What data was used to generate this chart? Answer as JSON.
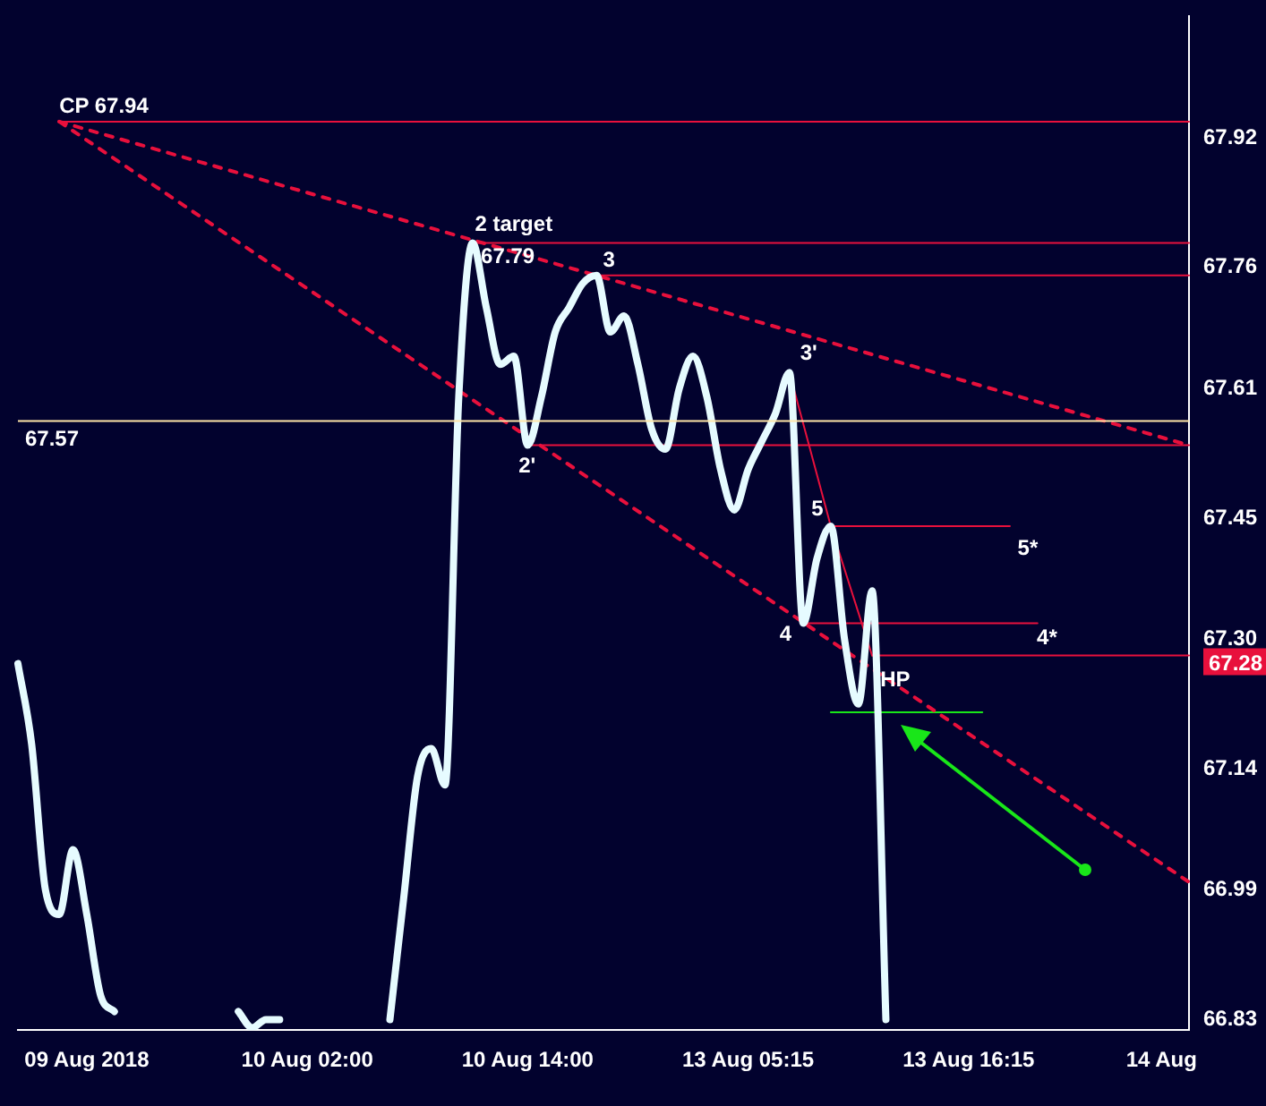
{
  "chart_data": {
    "type": "line",
    "categories": [
      null,
      null,
      null,
      null,
      null,
      "09 Aug 2018",
      null,
      null,
      null,
      null,
      null,
      null,
      null,
      null,
      null,
      null,
      null,
      null,
      null,
      null,
      null,
      "10 Aug 02:00",
      null,
      null,
      null,
      null,
      null,
      null,
      null,
      null,
      null,
      null,
      null,
      null,
      null,
      null,
      null,
      "10 Aug 14:00",
      null,
      null,
      null,
      null,
      null,
      null,
      null,
      null,
      null,
      null,
      null,
      null,
      null,
      null,
      null,
      "13 Aug 05:15",
      null,
      null,
      null,
      null,
      null,
      null,
      null,
      null,
      null,
      null,
      null,
      null,
      null,
      null,
      null,
      "13 Aug 16:15",
      null,
      null,
      null,
      null,
      null,
      null,
      null,
      null,
      null,
      null,
      null,
      null,
      null,
      "14 Aug",
      null,
      null
    ],
    "series": [
      {
        "color": "#e6fbff",
        "values": [
          67.27,
          67.17,
          66.99,
          66.96,
          67.04,
          66.96,
          66.86,
          66.84,
          null,
          null,
          null,
          null,
          null,
          null,
          null,
          null,
          66.84,
          66.82,
          66.83,
          66.83,
          null,
          null,
          null,
          null,
          null,
          null,
          null,
          66.83,
          66.98,
          67.13,
          67.165,
          67.12,
          67.6,
          67.79,
          67.71,
          67.64,
          67.65,
          67.54,
          67.6,
          67.68,
          67.71,
          67.74,
          67.75,
          67.68,
          67.7,
          67.64,
          67.56,
          67.535,
          67.61,
          67.65,
          67.6,
          67.51,
          67.46,
          67.51,
          67.545,
          67.58,
          67.63,
          67.32,
          67.4,
          67.44,
          67.3,
          67.22,
          67.36,
          66.83,
          null,
          null,
          null,
          null,
          null,
          null,
          null,
          null,
          null,
          null,
          null,
          null,
          null,
          null,
          null,
          null,
          null,
          null,
          null,
          null,
          null,
          null
        ]
      },
      {
        "color": "#e8103c",
        "line_style": "dashed",
        "values": [
          null,
          null,
          null,
          67.94,
          null,
          null,
          null,
          null,
          null,
          null,
          null,
          null,
          null,
          null,
          null,
          null,
          null,
          null,
          null,
          null,
          null,
          null,
          null,
          null,
          null,
          null,
          null,
          null,
          null,
          null,
          null,
          null,
          null,
          null,
          null,
          null,
          null,
          null,
          null,
          null,
          null,
          null,
          null,
          null,
          null,
          null,
          null,
          null,
          null,
          null,
          null,
          null,
          null,
          null,
          null,
          null,
          null,
          null,
          null,
          null,
          null,
          null,
          null,
          null,
          null,
          null,
          null,
          null,
          null,
          null,
          null,
          null,
          null,
          null,
          null,
          null,
          null,
          null,
          null,
          null,
          null,
          null,
          null,
          null,
          null,
          67.54
        ]
      },
      {
        "color": "#e8103c",
        "line_style": "dashed",
        "values": [
          null,
          null,
          null,
          67.94,
          null,
          null,
          null,
          null,
          null,
          null,
          null,
          null,
          null,
          null,
          null,
          null,
          null,
          null,
          null,
          null,
          null,
          null,
          null,
          null,
          null,
          null,
          null,
          null,
          null,
          null,
          null,
          null,
          null,
          null,
          null,
          null,
          null,
          null,
          null,
          null,
          null,
          null,
          null,
          null,
          null,
          null,
          null,
          null,
          null,
          null,
          null,
          null,
          null,
          null,
          null,
          null,
          null,
          null,
          null,
          null,
          null,
          null,
          null,
          null,
          null,
          null,
          null,
          null,
          null,
          null,
          null,
          null,
          null,
          null,
          null,
          null,
          null,
          null,
          null,
          null,
          null,
          null,
          null,
          null,
          null,
          67.0
        ]
      },
      {
        "color": "#e8103c",
        "values": [
          null,
          null,
          null,
          67.94,
          null,
          null,
          null,
          null,
          null,
          null,
          null,
          null,
          null,
          null,
          null,
          null,
          null,
          null,
          null,
          null,
          null,
          null,
          null,
          null,
          null,
          null,
          null,
          null,
          null,
          null,
          null,
          null,
          null,
          null,
          null,
          null,
          null,
          null,
          null,
          null,
          null,
          null,
          null,
          null,
          null,
          null,
          null,
          null,
          null,
          null,
          null,
          null,
          null,
          null,
          null,
          null,
          null,
          null,
          null,
          null,
          null,
          null,
          null,
          null,
          null,
          null,
          null,
          null,
          null,
          null,
          null,
          null,
          null,
          null,
          null,
          null,
          null,
          null,
          null,
          null,
          null,
          null,
          null,
          null,
          null,
          67.94
        ]
      },
      {
        "color": "#e8103c",
        "values": [
          null,
          null,
          null,
          null,
          null,
          null,
          null,
          null,
          null,
          null,
          null,
          null,
          null,
          null,
          null,
          null,
          null,
          null,
          null,
          null,
          null,
          null,
          null,
          null,
          null,
          null,
          null,
          null,
          null,
          null,
          null,
          null,
          null,
          67.79,
          null,
          null,
          null,
          null,
          null,
          null,
          null,
          null,
          null,
          null,
          null,
          null,
          null,
          null,
          null,
          null,
          null,
          null,
          null,
          null,
          null,
          null,
          null,
          null,
          null,
          null,
          null,
          null,
          null,
          null,
          null,
          null,
          null,
          null,
          null,
          null,
          null,
          null,
          null,
          null,
          null,
          null,
          null,
          null,
          null,
          null,
          null,
          null,
          null,
          null,
          null,
          67.79
        ]
      },
      {
        "color": "#e8103c",
        "values": [
          null,
          null,
          null,
          null,
          null,
          null,
          null,
          null,
          null,
          null,
          null,
          null,
          null,
          null,
          null,
          null,
          null,
          null,
          null,
          null,
          null,
          null,
          null,
          null,
          null,
          null,
          null,
          null,
          null,
          null,
          null,
          null,
          null,
          null,
          null,
          null,
          null,
          null,
          null,
          null,
          null,
          null,
          67.75,
          null,
          null,
          null,
          null,
          null,
          null,
          null,
          null,
          null,
          null,
          null,
          null,
          null,
          null,
          null,
          null,
          null,
          null,
          null,
          null,
          null,
          null,
          null,
          null,
          null,
          null,
          null,
          null,
          null,
          null,
          null,
          null,
          null,
          null,
          null,
          null,
          null,
          null,
          null,
          null,
          null,
          null,
          67.75
        ]
      },
      {
        "color": "#e8103c",
        "values": [
          null,
          null,
          null,
          null,
          null,
          null,
          null,
          null,
          null,
          null,
          null,
          null,
          null,
          null,
          null,
          null,
          null,
          null,
          null,
          null,
          null,
          null,
          null,
          null,
          null,
          null,
          null,
          null,
          null,
          null,
          null,
          null,
          null,
          null,
          null,
          null,
          null,
          67.54,
          null,
          null,
          null,
          null,
          null,
          null,
          null,
          null,
          null,
          null,
          null,
          null,
          null,
          null,
          null,
          null,
          null,
          null,
          null,
          null,
          null,
          null,
          null,
          null,
          null,
          null,
          null,
          null,
          null,
          null,
          null,
          null,
          null,
          null,
          null,
          null,
          null,
          null,
          null,
          null,
          null,
          null,
          null,
          null,
          null,
          null,
          null,
          67.54
        ]
      },
      {
        "color": "#e8103c",
        "values": [
          null,
          null,
          null,
          null,
          null,
          null,
          null,
          null,
          null,
          null,
          null,
          null,
          null,
          null,
          null,
          null,
          null,
          null,
          null,
          null,
          null,
          null,
          null,
          null,
          null,
          null,
          null,
          null,
          null,
          null,
          null,
          null,
          null,
          null,
          null,
          null,
          null,
          null,
          null,
          null,
          null,
          null,
          null,
          null,
          null,
          null,
          null,
          null,
          null,
          null,
          null,
          null,
          null,
          null,
          null,
          null,
          67.63,
          null,
          null,
          67.44,
          null,
          null,
          67.28,
          null,
          null,
          null,
          null,
          null,
          null,
          null,
          null,
          null,
          null,
          null,
          null,
          null,
          null,
          null,
          null,
          null,
          null,
          null,
          null,
          null,
          null,
          null
        ]
      },
      {
        "color": "#e8103c",
        "values": [
          null,
          null,
          null,
          null,
          null,
          null,
          null,
          null,
          null,
          null,
          null,
          null,
          null,
          null,
          null,
          null,
          null,
          null,
          null,
          null,
          null,
          null,
          null,
          null,
          null,
          null,
          null,
          null,
          null,
          null,
          null,
          null,
          null,
          null,
          null,
          null,
          null,
          null,
          null,
          null,
          null,
          null,
          null,
          null,
          null,
          null,
          null,
          null,
          null,
          null,
          null,
          null,
          null,
          null,
          null,
          null,
          null,
          null,
          null,
          67.44,
          null,
          null,
          null,
          null,
          null,
          null,
          null,
          null,
          null,
          null,
          null,
          null,
          67.44,
          null,
          null,
          null,
          null,
          null,
          null,
          null,
          null,
          null,
          null,
          null,
          null,
          null
        ]
      },
      {
        "color": "#e8103c",
        "values": [
          null,
          null,
          null,
          null,
          null,
          null,
          null,
          null,
          null,
          null,
          null,
          null,
          null,
          null,
          null,
          null,
          null,
          null,
          null,
          null,
          null,
          null,
          null,
          null,
          null,
          null,
          null,
          null,
          null,
          null,
          null,
          null,
          null,
          null,
          null,
          null,
          null,
          null,
          null,
          null,
          null,
          null,
          null,
          null,
          null,
          null,
          null,
          null,
          null,
          null,
          null,
          null,
          null,
          null,
          null,
          null,
          null,
          67.32,
          null,
          null,
          null,
          null,
          null,
          null,
          null,
          null,
          null,
          null,
          null,
          null,
          null,
          null,
          null,
          null,
          67.32,
          null,
          null,
          null,
          null,
          null,
          null,
          null,
          null,
          null,
          null,
          null
        ]
      },
      {
        "color": "#e8103c",
        "values": [
          null,
          null,
          null,
          null,
          null,
          null,
          null,
          null,
          null,
          null,
          null,
          null,
          null,
          null,
          null,
          null,
          null,
          null,
          null,
          null,
          null,
          null,
          null,
          null,
          null,
          null,
          null,
          null,
          null,
          null,
          null,
          null,
          null,
          null,
          null,
          null,
          null,
          null,
          null,
          null,
          null,
          null,
          null,
          null,
          null,
          null,
          null,
          null,
          null,
          null,
          null,
          null,
          null,
          null,
          null,
          null,
          null,
          null,
          null,
          null,
          null,
          null,
          67.28,
          null,
          null,
          null,
          null,
          null,
          null,
          null,
          null,
          null,
          null,
          null,
          null,
          null,
          null,
          null,
          null,
          null,
          null,
          null,
          null,
          null,
          null,
          67.28
        ]
      },
      {
        "color": "#19e619",
        "values": [
          null,
          null,
          null,
          null,
          null,
          null,
          null,
          null,
          null,
          null,
          null,
          null,
          null,
          null,
          null,
          null,
          null,
          null,
          null,
          null,
          null,
          null,
          null,
          null,
          null,
          null,
          null,
          null,
          null,
          null,
          null,
          null,
          null,
          null,
          null,
          null,
          null,
          null,
          null,
          null,
          null,
          null,
          null,
          null,
          null,
          null,
          null,
          null,
          null,
          null,
          null,
          null,
          null,
          null,
          null,
          null,
          null,
          null,
          null,
          67.21,
          null,
          null,
          null,
          null,
          null,
          null,
          null,
          null,
          null,
          null,
          67.21,
          null,
          null,
          null,
          null,
          null,
          null,
          null,
          null,
          null,
          null,
          null,
          null,
          null,
          null,
          null
        ]
      }
    ],
    "ylim": [
      66.817,
      68.07
    ],
    "yticks": [
      66.83,
      66.99,
      67.14,
      {
        "value": 67.3,
        "label": "67.30"
      },
      67.45,
      67.61,
      67.76,
      67.92
    ],
    "ref_lines": [
      {
        "axis": "y",
        "value": 67.57,
        "label": "67.57",
        "color": "#ffe6a8"
      }
    ],
    "annotations": [
      {
        "text": "CP 67.94",
        "y": 67.94
      },
      {
        "text": "2 target",
        "y": 67.79
      },
      {
        "text": "67.79",
        "y": 67.79
      },
      {
        "text": "3",
        "y": 67.75
      },
      {
        "text": "2'",
        "y": 67.54
      },
      "3'",
      {
        "text": "5",
        "y": 67.44
      },
      "5*",
      {
        "text": "4",
        "y": 67.32
      },
      "4*",
      {
        "text": "HP",
        "y": 67.28
      },
      "67.28"
    ],
    "grid": false,
    "legend": false,
    "marker": "none"
  }
}
